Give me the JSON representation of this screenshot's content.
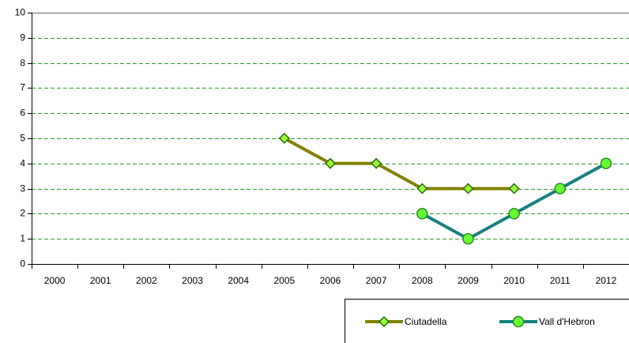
{
  "chart_data": {
    "type": "line",
    "categories": [
      "2000",
      "2001",
      "2002",
      "2003",
      "2004",
      "2005",
      "2006",
      "2007",
      "2008",
      "2009",
      "2010",
      "2011",
      "2012"
    ],
    "series": [
      {
        "name": "Ciutadella",
        "color": "#808000",
        "marker_color": "#99ff33",
        "marker": "diamond",
        "values": [
          null,
          null,
          null,
          null,
          null,
          5,
          4,
          4,
          3,
          3,
          3,
          null,
          null
        ]
      },
      {
        "name": "Vall d'Hebron",
        "color": "#178080",
        "marker_color": "#66ff33",
        "marker": "circle",
        "values": [
          null,
          null,
          null,
          null,
          null,
          null,
          null,
          null,
          2,
          1,
          2,
          3,
          4
        ]
      }
    ],
    "ylim": [
      0,
      10
    ],
    "yticks": [
      0,
      1,
      2,
      3,
      4,
      5,
      6,
      7,
      8,
      9,
      10
    ],
    "grid": true,
    "legend": "bottom-right"
  }
}
